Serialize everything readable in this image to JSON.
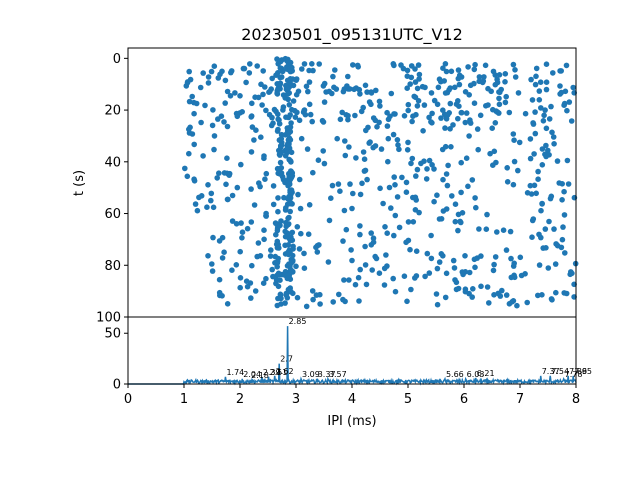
{
  "chart_data": [
    {
      "type": "scatter",
      "title": "20230501_095131UTC_V12",
      "xlabel": "",
      "ylabel": "t (s)",
      "xlim": [
        0,
        8
      ],
      "ylim": [
        100,
        -4
      ],
      "y_inverted": true,
      "yticks": [
        "0",
        "20",
        "40",
        "60",
        "80",
        "100"
      ],
      "grid": false,
      "color": "#1f77b4",
      "bands": [
        {
          "t_range": [
            2,
            25
          ],
          "x_range": [
            1,
            8
          ],
          "density": 0.75,
          "note": "dense upper band"
        },
        {
          "t_range": [
            25,
            62
          ],
          "x_range": [
            1,
            8
          ],
          "density": 0.55
        },
        {
          "t_range": [
            62,
            76
          ],
          "x_range": [
            1.5,
            8
          ],
          "density": 0.2
        },
        {
          "t_range": [
            76,
            96
          ],
          "x_range": [
            1.4,
            8
          ],
          "density": 0.35
        }
      ],
      "columns": [
        {
          "x": 2.7,
          "t_range": [
            0,
            96
          ]
        },
        {
          "x": 2.85,
          "t_range": [
            0,
            96
          ]
        },
        {
          "x": 2.9,
          "t_range": [
            0,
            96
          ]
        }
      ]
    },
    {
      "type": "line",
      "xlabel": "IPI (ms)",
      "ylabel": "",
      "xlim": [
        0,
        8
      ],
      "ylim": [
        0,
        66
      ],
      "xticks": [
        "0",
        "1",
        "2",
        "3",
        "4",
        "5",
        "6",
        "7",
        "8"
      ],
      "yticks": [
        "0",
        "50"
      ],
      "color": "#1f77b4",
      "baseline": 2,
      "peaks": [
        {
          "x": 1.74,
          "y": 7,
          "label": "1.74"
        },
        {
          "x": 2.04,
          "y": 5,
          "label": "2.04"
        },
        {
          "x": 2.18,
          "y": 4,
          "label": "2.18"
        },
        {
          "x": 2.39,
          "y": 7,
          "label": "2.39"
        },
        {
          "x": 2.51,
          "y": 7,
          "label": "2.51"
        },
        {
          "x": 2.62,
          "y": 8,
          "label": "2.62"
        },
        {
          "x": 2.7,
          "y": 20,
          "label": "2.7"
        },
        {
          "x": 2.85,
          "y": 57,
          "label": "2.85"
        },
        {
          "x": 3.09,
          "y": 5,
          "label": "3.09"
        },
        {
          "x": 3.37,
          "y": 5,
          "label": "3.37"
        },
        {
          "x": 3.57,
          "y": 5,
          "label": "3.57"
        },
        {
          "x": 5.66,
          "y": 5,
          "label": "5.66"
        },
        {
          "x": 6.03,
          "y": 5,
          "label": "6.03"
        },
        {
          "x": 6.21,
          "y": 6,
          "label": "6.21"
        },
        {
          "x": 7.37,
          "y": 8,
          "label": "7.37"
        },
        {
          "x": 7.54,
          "y": 8,
          "label": "7.54"
        },
        {
          "x": 7.78,
          "y": 5,
          "label": "7.78"
        },
        {
          "x": 7.86,
          "y": 8,
          "label": "7.86"
        },
        {
          "x": 7.95,
          "y": 8,
          "label": "7.95"
        }
      ]
    }
  ]
}
